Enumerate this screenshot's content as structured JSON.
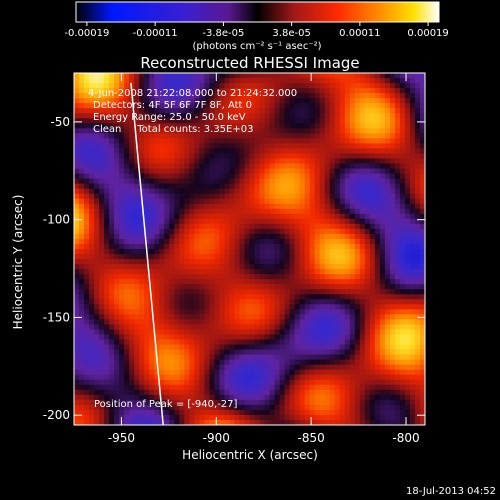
{
  "colorbar": {
    "tick_labels": [
      "-0.00019",
      "-0.00011",
      "-3.8e-05",
      "3.8e-05",
      "0.00011",
      "0.00019"
    ],
    "units_label": "(photons cm⁻² s⁻¹ asec⁻²)",
    "range": [
      -0.00019,
      0.00019
    ]
  },
  "chart_data": {
    "type": "heatmap",
    "title": "Reconstructed RHESSI Image",
    "xlabel": "Heliocentric X (arcsec)",
    "ylabel": "Heliocentric Y (arcsec)",
    "xlim": [
      -975,
      -790
    ],
    "ylim": [
      -205,
      -25
    ],
    "x_ticks": [
      -950,
      -900,
      -850,
      -800
    ],
    "y_ticks": [
      -50,
      -100,
      -150,
      -200
    ],
    "colormap": "black-blue-purple-red-orange-yellow-white",
    "annotations": [
      "4-Jun-2008 21:22:08.000 to 21:24:32.000",
      "Detectors: 4F 5F 6F 7F 8F, Att 0",
      "Energy Range: 25.0 - 50.0 keV",
      "Clean     Total counts: 3.35E+03",
      "Position of Peak = [-940,-27]"
    ],
    "limb_line": {
      "x": [
        -945,
        -928
      ],
      "y": [
        -30,
        -205
      ]
    },
    "peak_position": [
      -940,
      -27
    ]
  },
  "footer": {
    "timestamp": "18-Jul-2013 04:52"
  }
}
